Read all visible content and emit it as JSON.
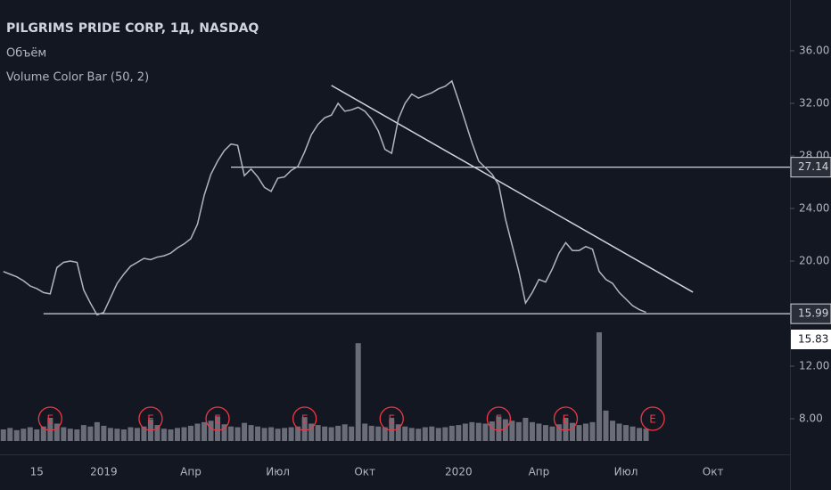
{
  "chart_data": {
    "type": "line",
    "title": "PILGRIMS PRIDE CORP, 1Д, NASDAQ",
    "indicators": [
      "Объём",
      "Volume Color Bar (50, 2)"
    ],
    "color": "#b2b5be",
    "volume_color": "#6a6d78",
    "categories": [
      null,
      null,
      null,
      null,
      null,
      "15",
      null,
      null,
      null,
      null,
      null,
      null,
      null,
      null,
      null,
      "2019",
      null,
      null,
      null,
      null,
      null,
      null,
      null,
      null,
      null,
      null,
      null,
      null,
      "Апр",
      null,
      null,
      null,
      null,
      null,
      null,
      null,
      null,
      null,
      null,
      null,
      null,
      "Июл",
      null,
      null,
      null,
      null,
      null,
      null,
      null,
      null,
      null,
      null,
      null,
      null,
      "Окт",
      null,
      null,
      null,
      null,
      null,
      null,
      null,
      null,
      null,
      null,
      null,
      null,
      null,
      "2020",
      null,
      null,
      null,
      null,
      null,
      null,
      null,
      null,
      null,
      null,
      null,
      "Апр",
      null,
      null,
      null,
      null,
      null,
      null,
      null,
      null,
      null,
      null,
      null,
      null,
      "Июл",
      null,
      null,
      null,
      null,
      null,
      null,
      null,
      null,
      null,
      null,
      null,
      null,
      "Окт",
      null,
      null,
      null,
      null,
      null,
      null,
      null,
      null,
      null,
      null,
      null
    ],
    "values": [
      19.2,
      19.0,
      18.8,
      18.5,
      18.1,
      17.9,
      17.6,
      17.5,
      19.5,
      19.9,
      20.0,
      19.9,
      17.8,
      16.8,
      15.9,
      16.1,
      17.2,
      18.3,
      19.0,
      19.6,
      19.9,
      20.2,
      20.1,
      20.3,
      20.4,
      20.6,
      21.0,
      21.3,
      21.7,
      22.8,
      25.0,
      26.6,
      27.6,
      28.4,
      28.9,
      28.8,
      26.5,
      27.0,
      26.4,
      25.6,
      25.3,
      26.3,
      26.4,
      26.9,
      27.2,
      28.3,
      29.6,
      30.4,
      30.9,
      31.1,
      32.0,
      31.4,
      31.5,
      31.7,
      31.4,
      30.8,
      29.9,
      28.5,
      28.2,
      30.8,
      32.0,
      32.7,
      32.4,
      32.6,
      32.8,
      33.1,
      33.3,
      33.7,
      32.2,
      30.6,
      29.0,
      27.6,
      27.1,
      26.6,
      25.8,
      23.2,
      21.2,
      19.2,
      16.8,
      17.6,
      18.6,
      18.4,
      19.4,
      20.6,
      21.4,
      20.8,
      20.8,
      21.1,
      20.9,
      19.2,
      18.6,
      18.3,
      17.6,
      17.1,
      16.6,
      16.3,
      16.1,
      null,
      null,
      null,
      null,
      null,
      null,
      null,
      null,
      null,
      null,
      null,
      null,
      null,
      null,
      null,
      null,
      null,
      null,
      null,
      null,
      null
    ],
    "volume": [
      1.6,
      1.8,
      1.5,
      1.7,
      1.9,
      1.6,
      2.0,
      3.2,
      2.4,
      1.9,
      1.7,
      1.6,
      2.2,
      2.0,
      2.6,
      2.1,
      1.8,
      1.7,
      1.6,
      1.9,
      1.8,
      2.0,
      3.0,
      2.2,
      1.7,
      1.6,
      1.8,
      1.9,
      2.1,
      2.4,
      2.6,
      2.8,
      3.4,
      2.3,
      2.0,
      1.9,
      2.5,
      2.2,
      2.0,
      1.8,
      1.9,
      1.7,
      1.8,
      1.9,
      2.0,
      3.3,
      2.4,
      2.2,
      2.0,
      1.9,
      2.1,
      2.3,
      2.0,
      13.5,
      2.4,
      2.1,
      2.0,
      1.9,
      3.1,
      2.3,
      2.0,
      1.8,
      1.7,
      1.9,
      2.0,
      1.8,
      1.9,
      2.1,
      2.2,
      2.4,
      2.6,
      2.5,
      2.4,
      2.7,
      3.4,
      3.0,
      2.8,
      2.6,
      3.2,
      2.6,
      2.4,
      2.2,
      2.0,
      2.3,
      3.1,
      2.5,
      2.2,
      2.4,
      2.6,
      15.0,
      4.2,
      2.8,
      2.4,
      2.2,
      2.0,
      1.8,
      1.7,
      null,
      null,
      null,
      null,
      null,
      null,
      null,
      null,
      null,
      null,
      null,
      null,
      null,
      null,
      null,
      null,
      null,
      null,
      null,
      null,
      null
    ],
    "ylim": [
      5.29,
      39.86
    ],
    "yticks": [
      {
        "value": 8,
        "label": "8.00"
      },
      {
        "value": 12,
        "label": "12.00"
      },
      {
        "value": 20,
        "label": "20.00"
      },
      {
        "value": 24,
        "label": "24.00"
      },
      {
        "value": 28,
        "label": "28.00"
      },
      {
        "value": 32,
        "label": "32.00"
      },
      {
        "value": 36,
        "label": "36.00"
      }
    ],
    "hlines": [
      {
        "value": 27.14,
        "from": 34
      },
      {
        "value": 15.99,
        "from": 6
      }
    ],
    "trendline": [
      {
        "at": 49,
        "value": 33.36
      },
      {
        "at": 103,
        "value": 17.63
      }
    ],
    "last_price": "15.83",
    "events": [
      {
        "label": "E",
        "at": 7
      },
      {
        "label": "E",
        "at": 22
      },
      {
        "label": "E",
        "at": 32
      },
      {
        "label": "E",
        "at": 45
      },
      {
        "label": "E",
        "at": 58
      },
      {
        "label": "E",
        "at": 74
      },
      {
        "label": "E",
        "at": 84
      },
      {
        "label": "E",
        "at": 97
      }
    ]
  }
}
